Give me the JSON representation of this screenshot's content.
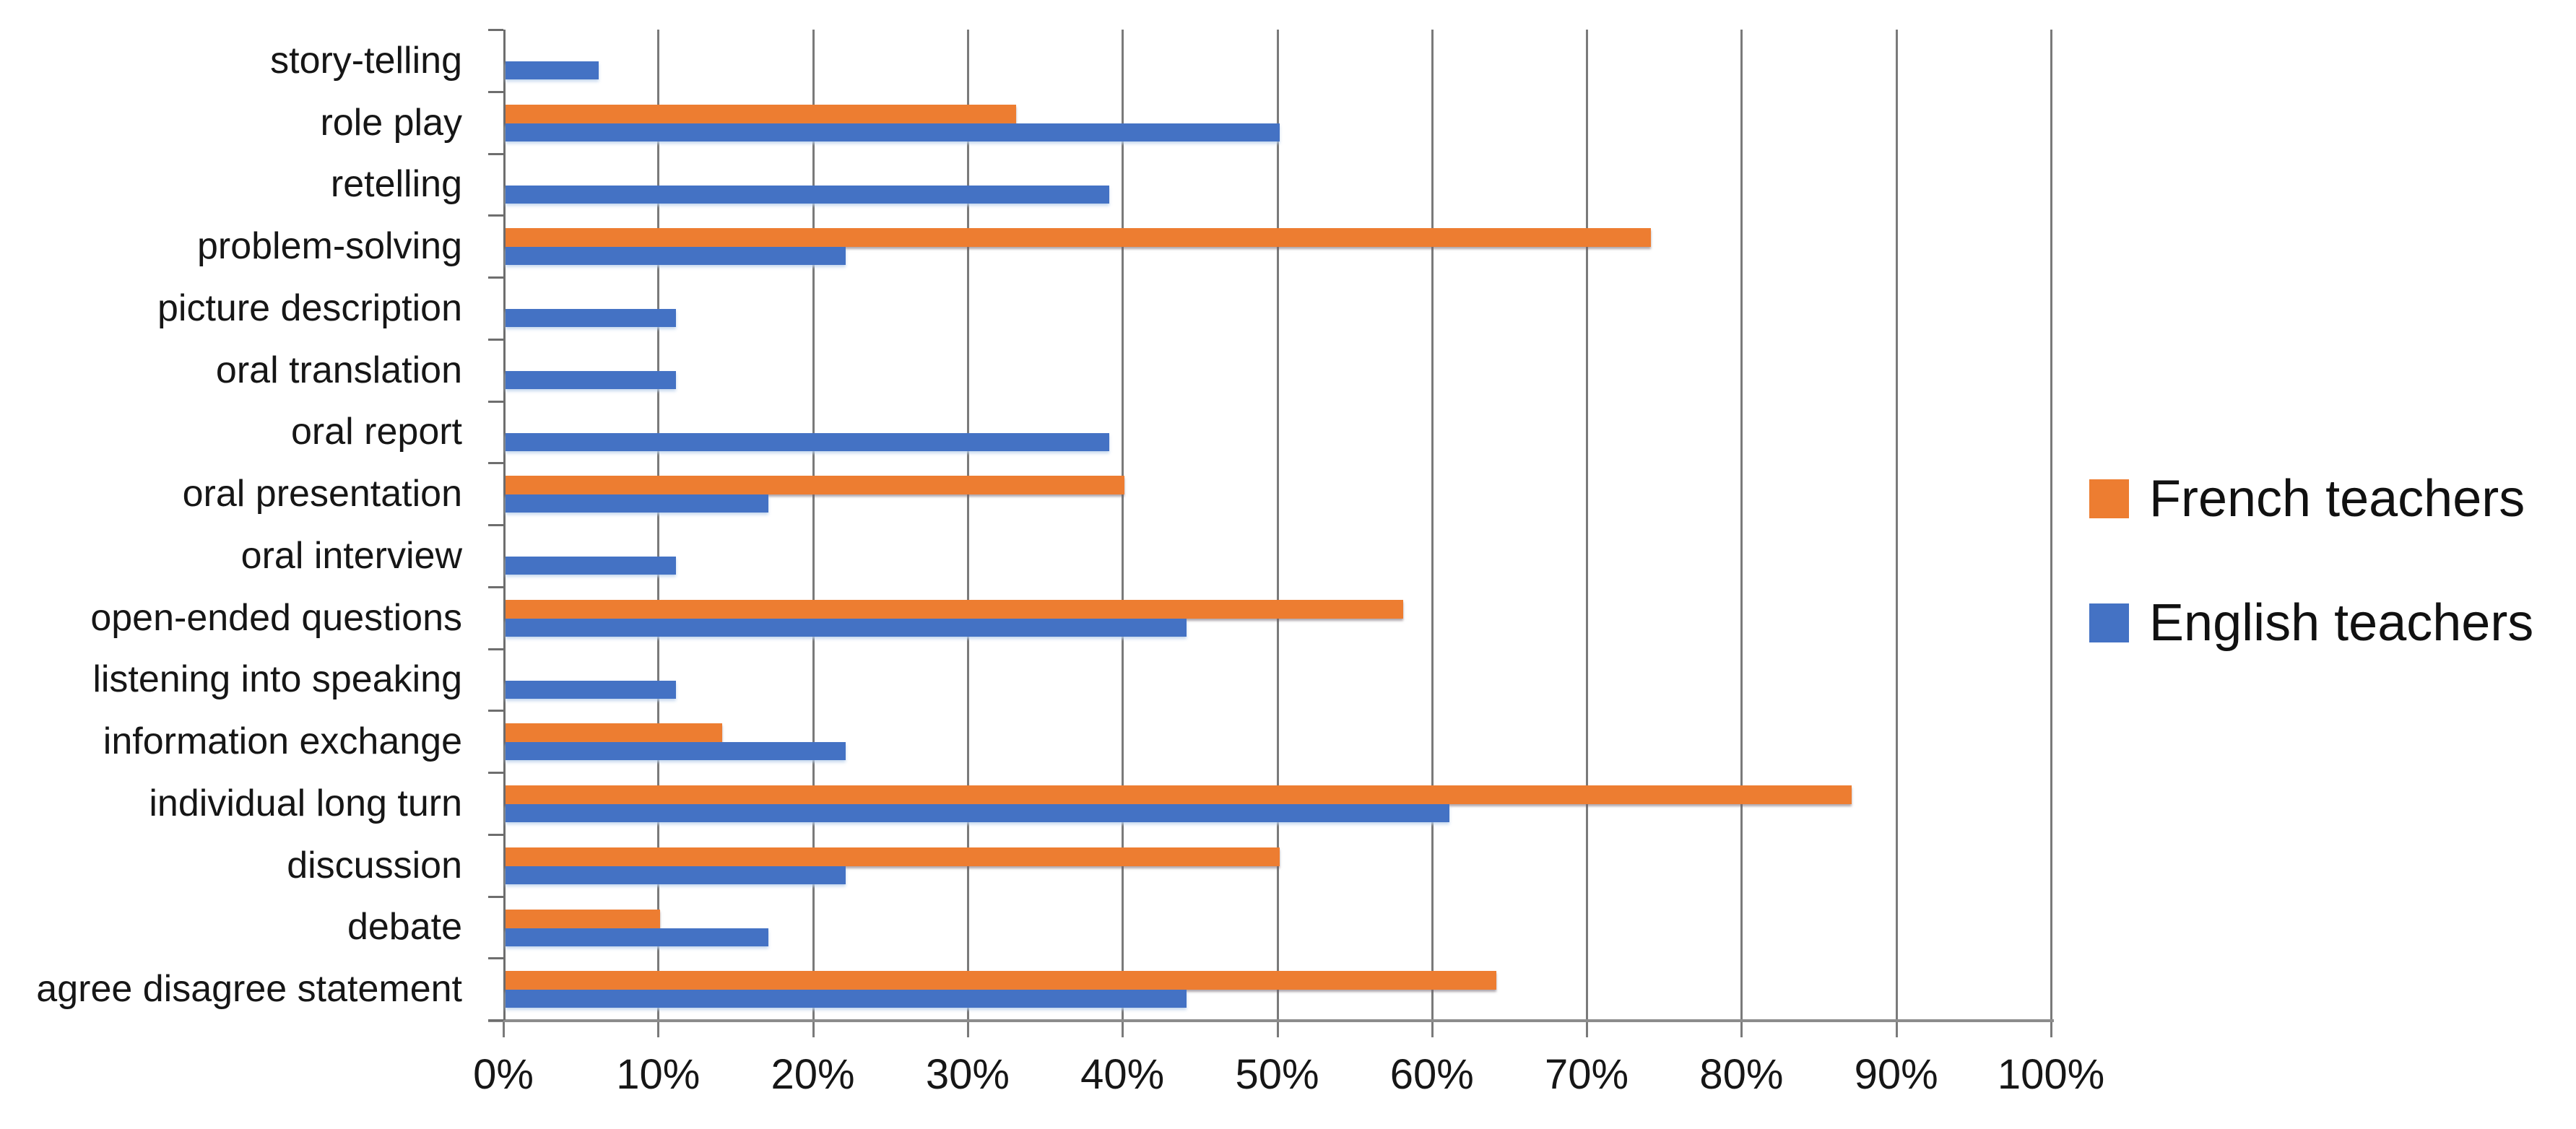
{
  "chart_data": {
    "type": "bar",
    "orientation": "horizontal",
    "title": "",
    "xlabel": "",
    "ylabel": "",
    "x_axis": {
      "min": 0,
      "max": 100,
      "step": 10,
      "grid": true,
      "ticks": [
        "0%",
        "10%",
        "20%",
        "30%",
        "40%",
        "50%",
        "60%",
        "70%",
        "80%",
        "90%",
        "100%"
      ]
    },
    "categories": [
      "story-telling",
      "role play",
      "retelling",
      "problem-solving",
      "picture description",
      "oral translation",
      "oral report",
      "oral presentation",
      "oral interview",
      "open-ended questions",
      "listening into speaking",
      "information exchange",
      "individual long turn",
      "discussion",
      "debate",
      "agree disagree statement"
    ],
    "series": [
      {
        "name": "French teachers",
        "color": "#ED7D31",
        "values": [
          0,
          33,
          0,
          74,
          0,
          0,
          0,
          40,
          0,
          58,
          0,
          14,
          87,
          50,
          10,
          64
        ]
      },
      {
        "name": "English teachers",
        "color": "#4472C4",
        "values": [
          6,
          50,
          39,
          22,
          11,
          11,
          39,
          17,
          11,
          44,
          11,
          22,
          61,
          22,
          17,
          44
        ]
      }
    ],
    "legend_position": "right",
    "gridline_color": "#7A7A7A",
    "axis_line_color": "#8C8C8C",
    "text_color": "#161616"
  }
}
